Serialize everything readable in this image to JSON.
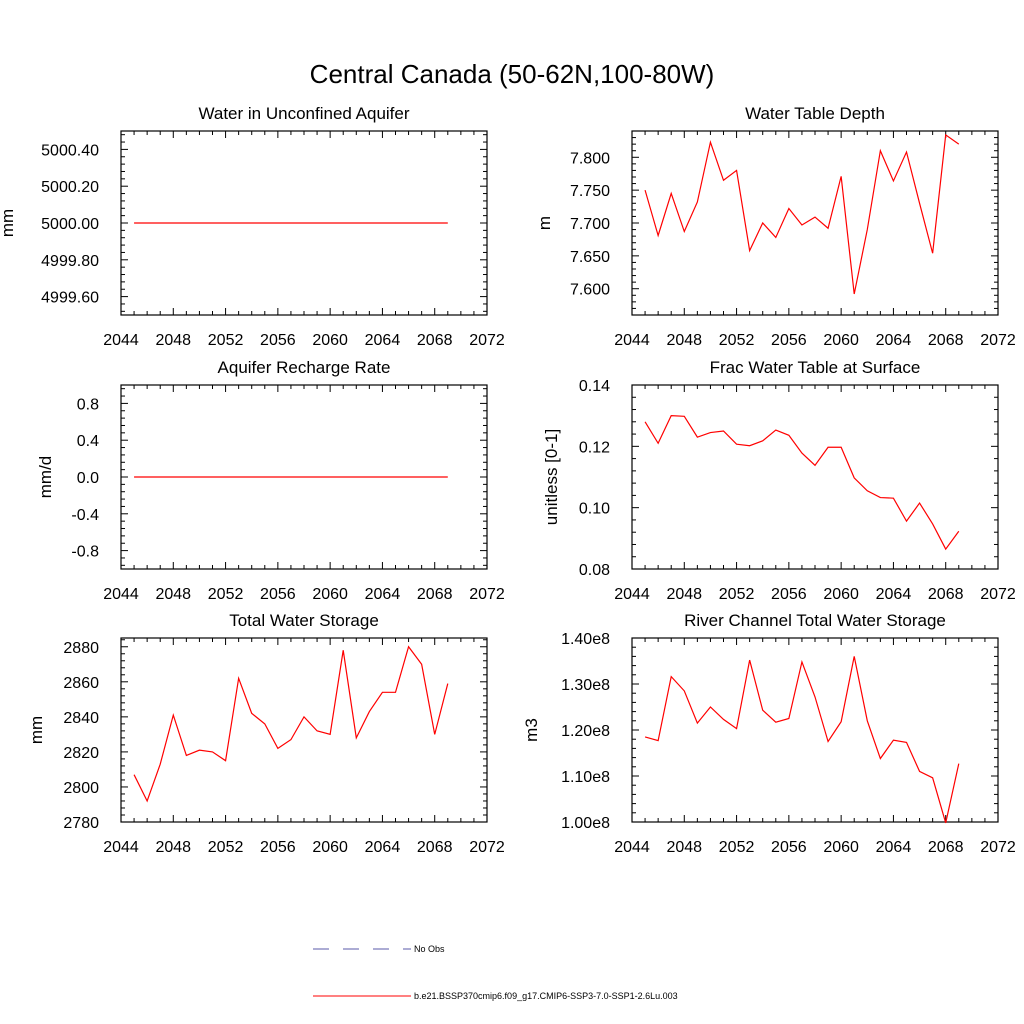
{
  "figure": {
    "title": "Central Canada (50-62N,100-80W)"
  },
  "colors": {
    "model": "#ff0000",
    "obs": "#5a5aa8"
  },
  "legend": {
    "entries": [
      {
        "label": "No Obs",
        "style": "dashed",
        "color": "#5a5aa8"
      },
      {
        "label": "b.e21.BSSP370cmip6.f09_g17.CMIP6-SSP3-7.0-SSP1-2.6Lu.003",
        "style": "solid",
        "color": "#ff0000"
      }
    ]
  },
  "chart_data": [
    {
      "type": "line",
      "title": "Water in Unconfined Aquifer",
      "ylabel": "mm",
      "xlim": [
        2044,
        2072
      ],
      "ylim": [
        4999.5,
        5000.5
      ],
      "xticks": [
        2044,
        2048,
        2052,
        2056,
        2060,
        2064,
        2068,
        2072
      ],
      "yticks": [
        4999.6,
        4999.8,
        5000.0,
        5000.2,
        5000.4
      ],
      "ytick_labels": [
        "4999.60",
        "4999.80",
        "5000.00",
        "5000.20",
        "5000.40"
      ],
      "x": [
        2045,
        2046,
        2047,
        2048,
        2049,
        2050,
        2051,
        2052,
        2053,
        2054,
        2055,
        2056,
        2057,
        2058,
        2059,
        2060,
        2061,
        2062,
        2063,
        2064,
        2065,
        2066,
        2067,
        2068,
        2069
      ],
      "y": [
        5000,
        5000,
        5000,
        5000,
        5000,
        5000,
        5000,
        5000,
        5000,
        5000,
        5000,
        5000,
        5000,
        5000,
        5000,
        5000,
        5000,
        5000,
        5000,
        5000,
        5000,
        5000,
        5000,
        5000,
        5000
      ]
    },
    {
      "type": "line",
      "title": "Water Table Depth",
      "ylabel": "m",
      "xlim": [
        2044,
        2072
      ],
      "ylim": [
        7.56,
        7.84
      ],
      "xticks": [
        2044,
        2048,
        2052,
        2056,
        2060,
        2064,
        2068,
        2072
      ],
      "yticks": [
        7.6,
        7.65,
        7.7,
        7.75,
        7.8
      ],
      "ytick_labels": [
        "7.600",
        "7.650",
        "7.700",
        "7.750",
        "7.800"
      ],
      "x": [
        2045,
        2046,
        2047,
        2048,
        2049,
        2050,
        2051,
        2052,
        2053,
        2054,
        2055,
        2056,
        2057,
        2058,
        2059,
        2060,
        2061,
        2062,
        2063,
        2064,
        2065,
        2066,
        2067,
        2068,
        2069
      ],
      "y": [
        7.75,
        7.681,
        7.745,
        7.687,
        7.732,
        7.823,
        7.765,
        7.78,
        7.658,
        7.7,
        7.678,
        7.722,
        7.697,
        7.709,
        7.692,
        7.771,
        7.592,
        7.69,
        7.81,
        7.764,
        7.808,
        7.73,
        7.654,
        7.834,
        7.82
      ]
    },
    {
      "type": "line",
      "title": "Aquifer Recharge Rate",
      "ylabel": "mm/d",
      "xlim": [
        2044,
        2072
      ],
      "ylim": [
        -1.0,
        1.0
      ],
      "xticks": [
        2044,
        2048,
        2052,
        2056,
        2060,
        2064,
        2068,
        2072
      ],
      "yticks": [
        -0.8,
        -0.4,
        0.0,
        0.4,
        0.8
      ],
      "ytick_labels": [
        "-0.8",
        "-0.4",
        "0.0",
        "0.4",
        "0.8"
      ],
      "x": [
        2045,
        2046,
        2047,
        2048,
        2049,
        2050,
        2051,
        2052,
        2053,
        2054,
        2055,
        2056,
        2057,
        2058,
        2059,
        2060,
        2061,
        2062,
        2063,
        2064,
        2065,
        2066,
        2067,
        2068,
        2069
      ],
      "y": [
        0,
        0,
        0,
        0,
        0,
        0,
        0,
        0,
        0,
        0,
        0,
        0,
        0,
        0,
        0,
        0,
        0,
        0,
        0,
        0,
        0,
        0,
        0,
        0,
        0
      ]
    },
    {
      "type": "line",
      "title": "Frac Water Table at Surface",
      "ylabel": "unitless [0-1]",
      "xlim": [
        2044,
        2072
      ],
      "ylim": [
        0.08,
        0.14
      ],
      "xticks": [
        2044,
        2048,
        2052,
        2056,
        2060,
        2064,
        2068,
        2072
      ],
      "yticks": [
        0.08,
        0.1,
        0.12,
        0.14
      ],
      "ytick_labels": [
        "0.08",
        "0.10",
        "0.12",
        "0.14"
      ],
      "x": [
        2045,
        2046,
        2047,
        2048,
        2049,
        2050,
        2051,
        2052,
        2053,
        2054,
        2055,
        2056,
        2057,
        2058,
        2059,
        2060,
        2061,
        2062,
        2063,
        2064,
        2065,
        2066,
        2067,
        2068,
        2069
      ],
      "y": [
        0.128,
        0.121,
        0.13,
        0.1298,
        0.123,
        0.1245,
        0.125,
        0.1207,
        0.1202,
        0.1218,
        0.1253,
        0.1236,
        0.1178,
        0.1138,
        0.1197,
        0.1197,
        0.1097,
        0.1055,
        0.1033,
        0.1031,
        0.0956,
        0.1015,
        0.0947,
        0.0865,
        0.0923
      ]
    },
    {
      "type": "line",
      "title": "Total Water Storage",
      "ylabel": "mm",
      "xlim": [
        2044,
        2072
      ],
      "ylim": [
        2780,
        2885
      ],
      "xticks": [
        2044,
        2048,
        2052,
        2056,
        2060,
        2064,
        2068,
        2072
      ],
      "yticks": [
        2780,
        2800,
        2820,
        2840,
        2860,
        2880
      ],
      "ytick_labels": [
        "2780",
        "2800",
        "2820",
        "2840",
        "2860",
        "2880"
      ],
      "x": [
        2045,
        2046,
        2047,
        2048,
        2049,
        2050,
        2051,
        2052,
        2053,
        2054,
        2055,
        2056,
        2057,
        2058,
        2059,
        2060,
        2061,
        2062,
        2063,
        2064,
        2065,
        2066,
        2067,
        2068,
        2069
      ],
      "y": [
        2807,
        2792,
        2813,
        2841,
        2818,
        2821,
        2820,
        2815,
        2862,
        2842,
        2836,
        2822,
        2827,
        2840,
        2832,
        2830,
        2878,
        2828,
        2843,
        2854,
        2854,
        2880,
        2870,
        2830,
        2859
      ]
    },
    {
      "type": "line",
      "title": "River Channel Total Water Storage",
      "ylabel": "m3",
      "xlim": [
        2044,
        2072
      ],
      "ylim": [
        100000000,
        140000000
      ],
      "xticks": [
        2044,
        2048,
        2052,
        2056,
        2060,
        2064,
        2068,
        2072
      ],
      "yticks": [
        100000000,
        110000000,
        120000000,
        130000000,
        140000000
      ],
      "ytick_labels": [
        "1.00e8",
        "1.10e8",
        "1.20e8",
        "1.30e8",
        "1.40e8"
      ],
      "x": [
        2045,
        2046,
        2047,
        2048,
        2049,
        2050,
        2051,
        2052,
        2053,
        2054,
        2055,
        2056,
        2057,
        2058,
        2059,
        2060,
        2061,
        2062,
        2063,
        2064,
        2065,
        2066,
        2067,
        2068,
        2069
      ],
      "y": [
        118500000,
        117700000,
        131600000,
        128500000,
        121500000,
        125000000,
        122300000,
        120300000,
        135200000,
        124300000,
        121700000,
        122500000,
        134800000,
        127200000,
        117500000,
        121800000,
        136000000,
        122000000,
        113800000,
        117800000,
        117300000,
        111000000,
        109600000,
        99800000,
        112700000
      ]
    }
  ]
}
